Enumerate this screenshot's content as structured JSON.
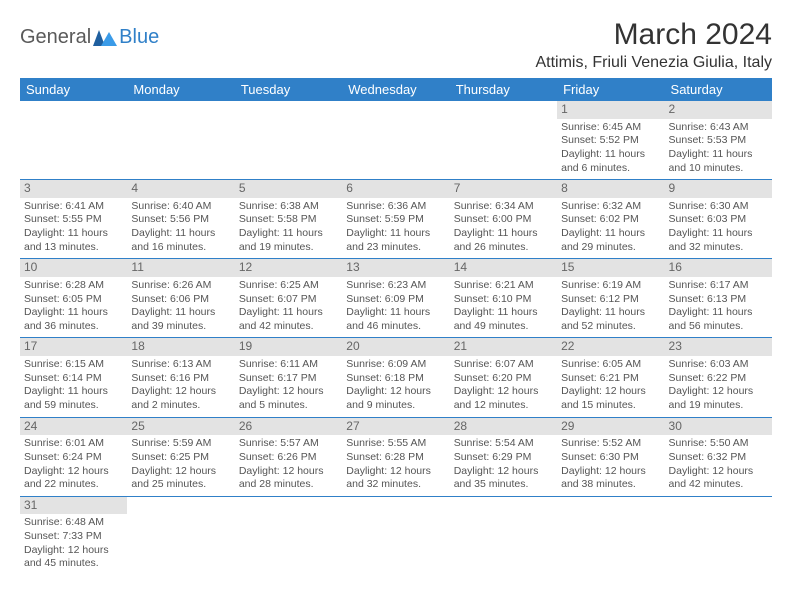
{
  "logo": {
    "part1": "General",
    "part2": "Blue"
  },
  "title": "March 2024",
  "location": "Attimis, Friuli Venezia Giulia, Italy",
  "colors": {
    "header_bg": "#3080c8",
    "header_text": "#ffffff",
    "daynum_bg": "#e3e3e3",
    "cell_border": "#3080c8",
    "text": "#555555",
    "logo_gray": "#5a5a5a",
    "logo_blue": "#3080c8"
  },
  "weekdays": [
    "Sunday",
    "Monday",
    "Tuesday",
    "Wednesday",
    "Thursday",
    "Friday",
    "Saturday"
  ],
  "weeks": [
    [
      {
        "empty": true
      },
      {
        "empty": true
      },
      {
        "empty": true
      },
      {
        "empty": true
      },
      {
        "empty": true
      },
      {
        "day": "1",
        "sunrise": "Sunrise: 6:45 AM",
        "sunset": "Sunset: 5:52 PM",
        "daylight": "Daylight: 11 hours and 6 minutes."
      },
      {
        "day": "2",
        "sunrise": "Sunrise: 6:43 AM",
        "sunset": "Sunset: 5:53 PM",
        "daylight": "Daylight: 11 hours and 10 minutes."
      }
    ],
    [
      {
        "day": "3",
        "sunrise": "Sunrise: 6:41 AM",
        "sunset": "Sunset: 5:55 PM",
        "daylight": "Daylight: 11 hours and 13 minutes."
      },
      {
        "day": "4",
        "sunrise": "Sunrise: 6:40 AM",
        "sunset": "Sunset: 5:56 PM",
        "daylight": "Daylight: 11 hours and 16 minutes."
      },
      {
        "day": "5",
        "sunrise": "Sunrise: 6:38 AM",
        "sunset": "Sunset: 5:58 PM",
        "daylight": "Daylight: 11 hours and 19 minutes."
      },
      {
        "day": "6",
        "sunrise": "Sunrise: 6:36 AM",
        "sunset": "Sunset: 5:59 PM",
        "daylight": "Daylight: 11 hours and 23 minutes."
      },
      {
        "day": "7",
        "sunrise": "Sunrise: 6:34 AM",
        "sunset": "Sunset: 6:00 PM",
        "daylight": "Daylight: 11 hours and 26 minutes."
      },
      {
        "day": "8",
        "sunrise": "Sunrise: 6:32 AM",
        "sunset": "Sunset: 6:02 PM",
        "daylight": "Daylight: 11 hours and 29 minutes."
      },
      {
        "day": "9",
        "sunrise": "Sunrise: 6:30 AM",
        "sunset": "Sunset: 6:03 PM",
        "daylight": "Daylight: 11 hours and 32 minutes."
      }
    ],
    [
      {
        "day": "10",
        "sunrise": "Sunrise: 6:28 AM",
        "sunset": "Sunset: 6:05 PM",
        "daylight": "Daylight: 11 hours and 36 minutes."
      },
      {
        "day": "11",
        "sunrise": "Sunrise: 6:26 AM",
        "sunset": "Sunset: 6:06 PM",
        "daylight": "Daylight: 11 hours and 39 minutes."
      },
      {
        "day": "12",
        "sunrise": "Sunrise: 6:25 AM",
        "sunset": "Sunset: 6:07 PM",
        "daylight": "Daylight: 11 hours and 42 minutes."
      },
      {
        "day": "13",
        "sunrise": "Sunrise: 6:23 AM",
        "sunset": "Sunset: 6:09 PM",
        "daylight": "Daylight: 11 hours and 46 minutes."
      },
      {
        "day": "14",
        "sunrise": "Sunrise: 6:21 AM",
        "sunset": "Sunset: 6:10 PM",
        "daylight": "Daylight: 11 hours and 49 minutes."
      },
      {
        "day": "15",
        "sunrise": "Sunrise: 6:19 AM",
        "sunset": "Sunset: 6:12 PM",
        "daylight": "Daylight: 11 hours and 52 minutes."
      },
      {
        "day": "16",
        "sunrise": "Sunrise: 6:17 AM",
        "sunset": "Sunset: 6:13 PM",
        "daylight": "Daylight: 11 hours and 56 minutes."
      }
    ],
    [
      {
        "day": "17",
        "sunrise": "Sunrise: 6:15 AM",
        "sunset": "Sunset: 6:14 PM",
        "daylight": "Daylight: 11 hours and 59 minutes."
      },
      {
        "day": "18",
        "sunrise": "Sunrise: 6:13 AM",
        "sunset": "Sunset: 6:16 PM",
        "daylight": "Daylight: 12 hours and 2 minutes."
      },
      {
        "day": "19",
        "sunrise": "Sunrise: 6:11 AM",
        "sunset": "Sunset: 6:17 PM",
        "daylight": "Daylight: 12 hours and 5 minutes."
      },
      {
        "day": "20",
        "sunrise": "Sunrise: 6:09 AM",
        "sunset": "Sunset: 6:18 PM",
        "daylight": "Daylight: 12 hours and 9 minutes."
      },
      {
        "day": "21",
        "sunrise": "Sunrise: 6:07 AM",
        "sunset": "Sunset: 6:20 PM",
        "daylight": "Daylight: 12 hours and 12 minutes."
      },
      {
        "day": "22",
        "sunrise": "Sunrise: 6:05 AM",
        "sunset": "Sunset: 6:21 PM",
        "daylight": "Daylight: 12 hours and 15 minutes."
      },
      {
        "day": "23",
        "sunrise": "Sunrise: 6:03 AM",
        "sunset": "Sunset: 6:22 PM",
        "daylight": "Daylight: 12 hours and 19 minutes."
      }
    ],
    [
      {
        "day": "24",
        "sunrise": "Sunrise: 6:01 AM",
        "sunset": "Sunset: 6:24 PM",
        "daylight": "Daylight: 12 hours and 22 minutes."
      },
      {
        "day": "25",
        "sunrise": "Sunrise: 5:59 AM",
        "sunset": "Sunset: 6:25 PM",
        "daylight": "Daylight: 12 hours and 25 minutes."
      },
      {
        "day": "26",
        "sunrise": "Sunrise: 5:57 AM",
        "sunset": "Sunset: 6:26 PM",
        "daylight": "Daylight: 12 hours and 28 minutes."
      },
      {
        "day": "27",
        "sunrise": "Sunrise: 5:55 AM",
        "sunset": "Sunset: 6:28 PM",
        "daylight": "Daylight: 12 hours and 32 minutes."
      },
      {
        "day": "28",
        "sunrise": "Sunrise: 5:54 AM",
        "sunset": "Sunset: 6:29 PM",
        "daylight": "Daylight: 12 hours and 35 minutes."
      },
      {
        "day": "29",
        "sunrise": "Sunrise: 5:52 AM",
        "sunset": "Sunset: 6:30 PM",
        "daylight": "Daylight: 12 hours and 38 minutes."
      },
      {
        "day": "30",
        "sunrise": "Sunrise: 5:50 AM",
        "sunset": "Sunset: 6:32 PM",
        "daylight": "Daylight: 12 hours and 42 minutes."
      }
    ],
    [
      {
        "day": "31",
        "sunrise": "Sunrise: 6:48 AM",
        "sunset": "Sunset: 7:33 PM",
        "daylight": "Daylight: 12 hours and 45 minutes."
      },
      {
        "empty": true
      },
      {
        "empty": true
      },
      {
        "empty": true
      },
      {
        "empty": true
      },
      {
        "empty": true
      },
      {
        "empty": true
      }
    ]
  ]
}
